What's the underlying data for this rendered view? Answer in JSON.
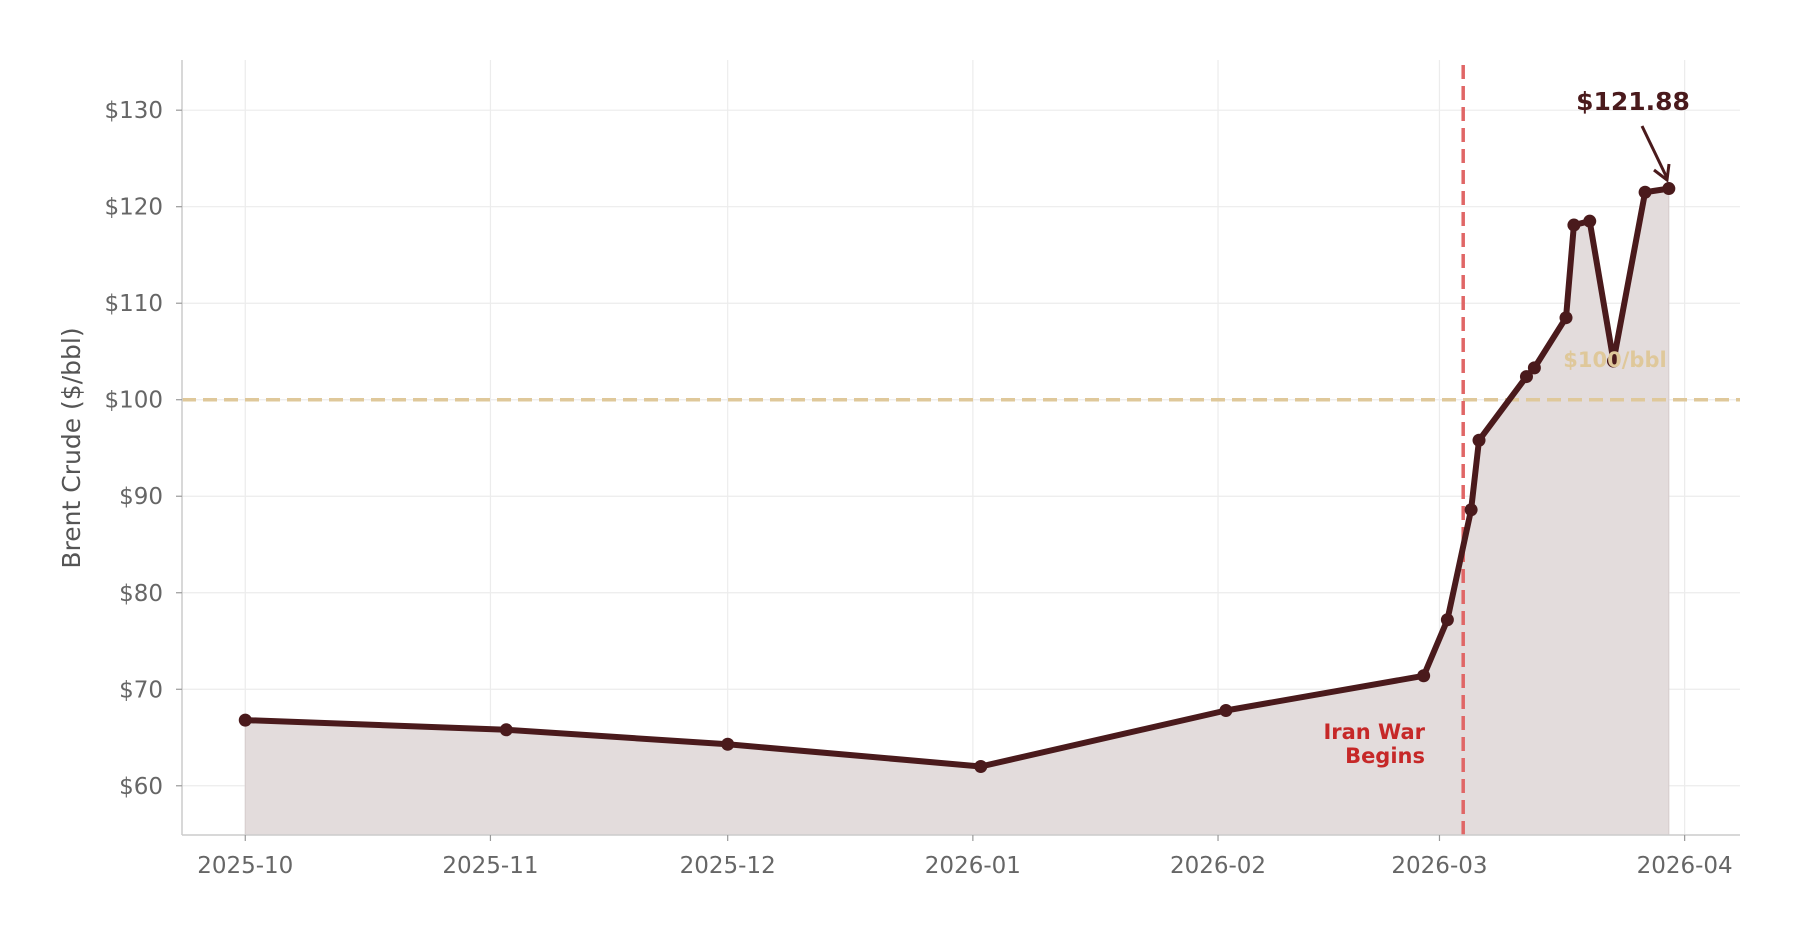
{
  "chart_data": {
    "type": "area",
    "title": "",
    "xlabel": "",
    "ylabel": "Brent Crude ($/bbl)",
    "xlim": [
      "2025-09-23",
      "2026-04-08"
    ],
    "ylim": [
      54.9,
      135.2
    ],
    "grid": true,
    "x_ticks": [
      "2025-10",
      "2025-11",
      "2025-12",
      "2026-01",
      "2026-02",
      "2026-03",
      "2026-04"
    ],
    "y_ticks": [
      60,
      70,
      80,
      90,
      100,
      110,
      120,
      130
    ],
    "y_tick_labels": [
      "$60",
      "$70",
      "$80",
      "$90",
      "$100",
      "$110",
      "$120",
      "$130"
    ],
    "series": [
      {
        "x": [
          "2025-10-01",
          "2025-11-03",
          "2025-12-01",
          "2026-01-02",
          "2026-02-02",
          "2026-02-27",
          "2026-03-02",
          "2026-03-05",
          "2026-03-06",
          "2026-03-12",
          "2026-03-13",
          "2026-03-17",
          "2026-03-18",
          "2026-03-20",
          "2026-03-23",
          "2026-03-27",
          "2026-03-30"
        ],
        "y": [
          66.8,
          65.8,
          64.3,
          62.0,
          67.8,
          71.4,
          77.2,
          88.6,
          95.8,
          102.4,
          103.3,
          108.5,
          118.1,
          118.5,
          104.0,
          121.5,
          121.88
        ]
      }
    ],
    "reference_lines": {
      "horizontal": {
        "value": 100,
        "label": "$100/bbl",
        "color": "#dfc89a"
      },
      "vertical": {
        "date": "2026-03-04",
        "label_line1": "Iran War",
        "label_line2": "Begins",
        "color": "#e06666",
        "label_color": "#c62828"
      }
    },
    "annotation": {
      "text": "$121.88",
      "date": "2026-03-30",
      "value": 121.88
    },
    "colors": {
      "line": "#4a1a1c",
      "fill": "#e3dcdc",
      "text": "#666666"
    }
  }
}
